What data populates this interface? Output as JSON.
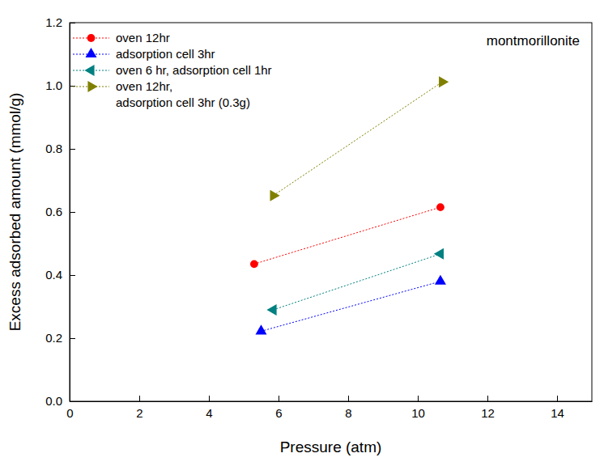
{
  "chart_data": {
    "type": "line",
    "annotation": "montmorillonite",
    "x_label": "Pressure (atm)",
    "y_label": "Excess adsorbed amount (mmol/g)",
    "xlim": [
      0,
      15
    ],
    "xticks": [
      0,
      2,
      4,
      6,
      8,
      10,
      12,
      14
    ],
    "ylim": [
      0,
      1.2
    ],
    "yticks": [
      {
        "value": 0,
        "label": "0.0"
      },
      0.2,
      0.4,
      0.6,
      0.8,
      {
        "value": 1,
        "label": "1.0"
      },
      1.2
    ],
    "legend": "upper left",
    "grid": false,
    "series": [
      {
        "name": "oven 12hr",
        "color": "#ff0000",
        "marker": "circle",
        "line_style": "dotted",
        "x": [
          5.3,
          10.65
        ],
        "values": [
          0.435,
          0.615
        ]
      },
      {
        "name": "adsorption cell 3hr",
        "color": "#0000ff",
        "marker": "triangle-up",
        "line_style": "dotted",
        "x": [
          5.5,
          10.65
        ],
        "values": [
          0.222,
          0.38
        ]
      },
      {
        "name": "oven 6 hr, adsorption cell 1hr",
        "color": "#008080",
        "marker": "triangle-left",
        "line_style": "dotted",
        "x": [
          5.85,
          10.65
        ],
        "values": [
          0.29,
          0.467
        ]
      },
      {
        "name": "oven 12hr,\nadsorption cell 3hr (0.3g)",
        "color": "#808000",
        "marker": "triangle-right",
        "line_style": "dotted",
        "x": [
          5.85,
          10.7
        ],
        "values": [
          0.652,
          1.012
        ]
      }
    ]
  }
}
